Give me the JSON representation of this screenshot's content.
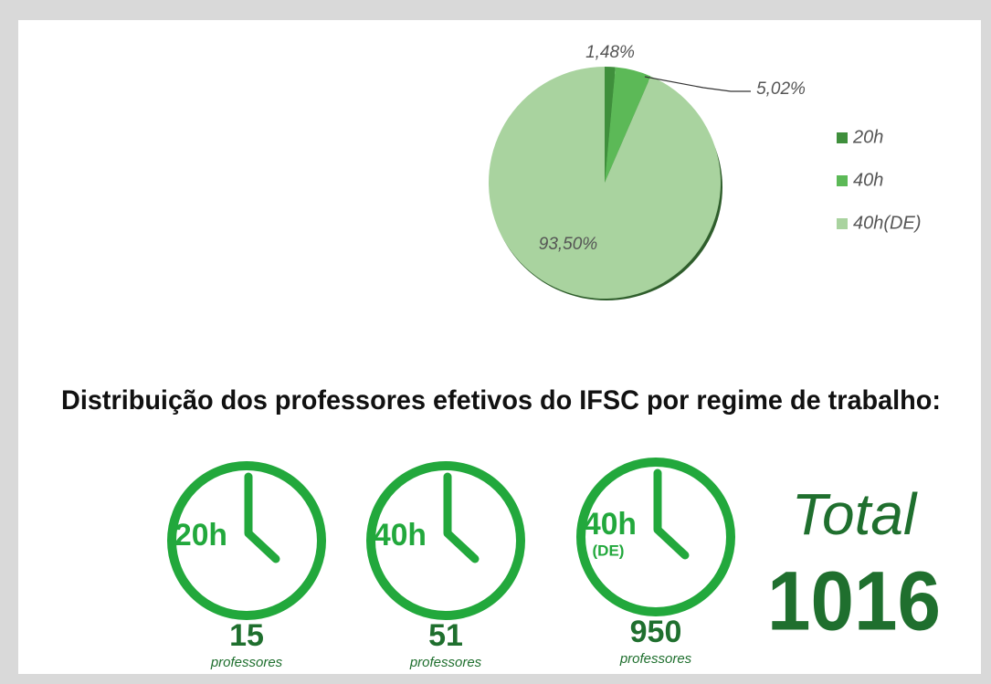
{
  "chart_data": {
    "type": "pie",
    "categories": [
      "20h",
      "40h",
      "40h(DE)"
    ],
    "values": [
      1.48,
      5.02,
      93.5
    ],
    "value_labels": [
      "1,48%",
      "5,02%",
      "93,50%"
    ],
    "colors": [
      "#3f8f3c",
      "#5cb957",
      "#a9d39f"
    ],
    "legend": "right"
  },
  "infographic": {
    "title": "Distribuição dos professores efetivos do IFSC por regime de trabalho:",
    "items": [
      {
        "label": "20h",
        "count": 15,
        "unit": "professores"
      },
      {
        "label": "40h",
        "count": 51,
        "unit": "professores"
      },
      {
        "label": "40h",
        "sublabel": "(DE)",
        "count": 950,
        "unit": "professores"
      }
    ],
    "total_label": "Total",
    "total": 1016
  }
}
